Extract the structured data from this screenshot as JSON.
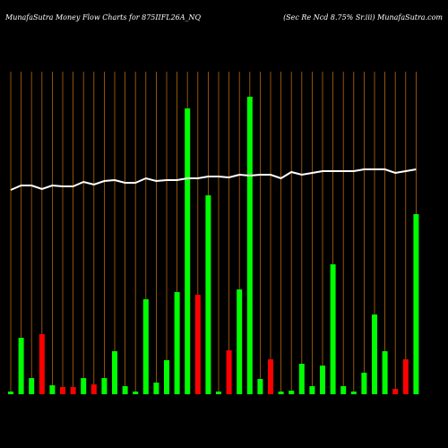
{
  "chart_data": {
    "type": "bar",
    "title": "MunafaSutra  Money Flow  Charts for 875IIFL26A_NQ",
    "subtitle": "(Sec Re    Ncd 8.75% Sr.iii) MunafaSutra.com",
    "categories": [
      null,
      null,
      null,
      null,
      null,
      null,
      null,
      null,
      null,
      null,
      null,
      null,
      null,
      null,
      null,
      null,
      null,
      null,
      null,
      null,
      null,
      null,
      null,
      null,
      null,
      null,
      null,
      null,
      null,
      null,
      null,
      null,
      null,
      null,
      null,
      null,
      null,
      null,
      null,
      null
    ],
    "values": [
      3,
      63,
      18,
      67,
      10,
      8,
      8,
      18,
      11,
      18,
      48,
      9,
      3,
      106,
      13,
      38,
      114,
      319,
      111,
      222,
      3,
      49,
      117,
      332,
      17,
      39,
      3,
      4,
      34,
      9,
      32,
      145,
      9,
      3,
      24,
      89,
      48,
      6,
      39,
      201
    ],
    "colors": [
      "#00ff00",
      "#00ff00",
      "#00ff00",
      "#ff0000",
      "#00ff00",
      "#ff0000",
      "#ff0000",
      "#00ff00",
      "#ff0000",
      "#00ff00",
      "#00ff00",
      "#00ff00",
      "#00ff00",
      "#00ff00",
      "#00ff00",
      "#00ff00",
      "#00ff00",
      "#00ff00",
      "#ff0000",
      "#00ff00",
      "#00ff00",
      "#ff0000",
      "#00ff00",
      "#00ff00",
      "#00ff00",
      "#ff0000",
      "#00ff00",
      "#00ff00",
      "#00ff00",
      "#00ff00",
      "#00ff00",
      "#00ff00",
      "#00ff00",
      "#00ff00",
      "#00ff00",
      "#00ff00",
      "#00ff00",
      "#ff0000",
      "#ff0000",
      "#00ff00"
    ],
    "line": {
      "color": "#ffffff",
      "values": [
        228,
        233,
        233,
        229,
        233,
        232,
        232,
        237,
        234,
        238,
        239,
        236,
        236,
        241,
        238,
        239,
        239,
        241,
        241,
        243,
        243,
        242,
        245,
        244,
        245,
        245,
        241,
        248,
        245,
        247,
        249,
        249,
        249,
        249,
        251,
        251,
        251,
        247,
        249,
        251
      ]
    }
  }
}
